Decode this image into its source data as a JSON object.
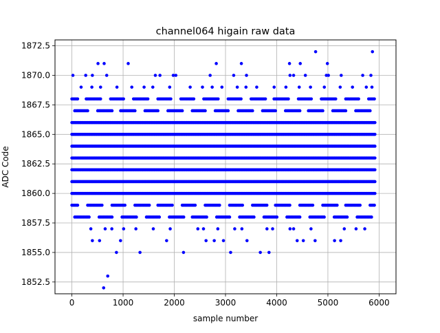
{
  "colors": {
    "series": "#0000ff",
    "grid": "#b0b0b0",
    "axis": "#000000",
    "background": "#ffffff"
  },
  "chart_data": {
    "type": "scatter",
    "title": "channel064 higain raw data",
    "xlabel": "sample number",
    "ylabel": "ADC Code",
    "xlim": [
      -330,
      6330
    ],
    "ylim": [
      1851.5,
      1873.0
    ],
    "xticks": [
      0,
      1000,
      2000,
      3000,
      4000,
      5000,
      6000
    ],
    "xtick_labels": [
      "0",
      "1000",
      "2000",
      "3000",
      "4000",
      "5000",
      "6000"
    ],
    "yticks": [
      1852.5,
      1855.0,
      1857.5,
      1860.0,
      1862.5,
      1865.0,
      1867.5,
      1870.0,
      1872.5
    ],
    "ytick_labels": [
      "1852.5",
      "1855.0",
      "1857.5",
      "1860.0",
      "1862.5",
      "1865.0",
      "1867.5",
      "1870.0",
      "1872.5"
    ],
    "grid": true,
    "legend": "none",
    "series": [
      {
        "marker": "circle",
        "x_range": [
          0,
          5919
        ],
        "dense_levels": [
          1860,
          1861,
          1862,
          1863,
          1864,
          1865,
          1866
        ],
        "medium_levels": [
          1858,
          1859,
          1867,
          1868
        ],
        "sparse_points": [
          [
            620,
            1852
          ],
          [
            700,
            1853
          ],
          [
            870,
            1855
          ],
          [
            1330,
            1855
          ],
          [
            2180,
            1855
          ],
          [
            3100,
            1855
          ],
          [
            3680,
            1855
          ],
          [
            3850,
            1855
          ],
          [
            400,
            1856
          ],
          [
            540,
            1856
          ],
          [
            950,
            1856
          ],
          [
            1850,
            1856
          ],
          [
            2620,
            1856
          ],
          [
            2780,
            1856
          ],
          [
            2960,
            1856
          ],
          [
            3420,
            1856
          ],
          [
            4400,
            1856
          ],
          [
            4520,
            1856
          ],
          [
            4750,
            1856
          ],
          [
            5130,
            1856
          ],
          [
            5250,
            1856
          ],
          [
            370,
            1857
          ],
          [
            650,
            1857
          ],
          [
            780,
            1857
          ],
          [
            1010,
            1857
          ],
          [
            1250,
            1857
          ],
          [
            1590,
            1857
          ],
          [
            1920,
            1857
          ],
          [
            2460,
            1857
          ],
          [
            2570,
            1857
          ],
          [
            2850,
            1857
          ],
          [
            3180,
            1857
          ],
          [
            3320,
            1857
          ],
          [
            3810,
            1857
          ],
          [
            3920,
            1857
          ],
          [
            4260,
            1857
          ],
          [
            4330,
            1857
          ],
          [
            4670,
            1857
          ],
          [
            5320,
            1857
          ],
          [
            5550,
            1857
          ],
          [
            5720,
            1857
          ],
          [
            180,
            1869
          ],
          [
            390,
            1869
          ],
          [
            560,
            1869
          ],
          [
            880,
            1869
          ],
          [
            1170,
            1869
          ],
          [
            1410,
            1869
          ],
          [
            1580,
            1869
          ],
          [
            1910,
            1869
          ],
          [
            2310,
            1869
          ],
          [
            2550,
            1869
          ],
          [
            2740,
            1869
          ],
          [
            2930,
            1869
          ],
          [
            3230,
            1869
          ],
          [
            3400,
            1869
          ],
          [
            3610,
            1869
          ],
          [
            3950,
            1869
          ],
          [
            4180,
            1869
          ],
          [
            4440,
            1869
          ],
          [
            4660,
            1869
          ],
          [
            4930,
            1869
          ],
          [
            5240,
            1869
          ],
          [
            5480,
            1869
          ],
          [
            5750,
            1869
          ],
          [
            5860,
            1869
          ],
          [
            20,
            1870
          ],
          [
            270,
            1870
          ],
          [
            400,
            1870
          ],
          [
            680,
            1870
          ],
          [
            1630,
            1870
          ],
          [
            1720,
            1870
          ],
          [
            1980,
            1870
          ],
          [
            2030,
            1870
          ],
          [
            2700,
            1870
          ],
          [
            3160,
            1870
          ],
          [
            3410,
            1870
          ],
          [
            4260,
            1870
          ],
          [
            4330,
            1870
          ],
          [
            4560,
            1870
          ],
          [
            4970,
            1870
          ],
          [
            5010,
            1870
          ],
          [
            5260,
            1870
          ],
          [
            5680,
            1870
          ],
          [
            5840,
            1870
          ],
          [
            510,
            1871
          ],
          [
            630,
            1871
          ],
          [
            1100,
            1871
          ],
          [
            2820,
            1871
          ],
          [
            3310,
            1871
          ],
          [
            4250,
            1871
          ],
          [
            4460,
            1871
          ],
          [
            4990,
            1871
          ],
          [
            4760,
            1872
          ],
          [
            5870,
            1872
          ]
        ]
      }
    ]
  }
}
